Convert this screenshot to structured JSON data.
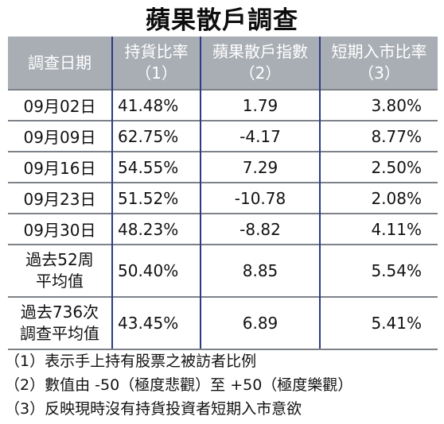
{
  "title": "蘋果散戶調查",
  "header": {
    "date": "調查日期",
    "holding_line1": "持貨比率",
    "holding_line2": "（1）",
    "index_line1": "蘋果散戶指數",
    "index_line2": "（2）",
    "entry_line1": "短期入市比率",
    "entry_line2": "（3）"
  },
  "rows": [
    {
      "date": "09月02日",
      "holding": "41.48%",
      "index": "1.79",
      "entry": "3.80%"
    },
    {
      "date": "09月09日",
      "holding": "62.75%",
      "index": "-4.17",
      "entry": "8.77%"
    },
    {
      "date": "09月16日",
      "holding": "54.55%",
      "index": "7.29",
      "entry": "2.50%"
    },
    {
      "date": "09月23日",
      "holding": "51.52%",
      "index": "-10.78",
      "entry": "2.08%"
    },
    {
      "date": "09月30日",
      "holding": "48.23%",
      "index": "-8.82",
      "entry": "4.11%"
    }
  ],
  "avg52": {
    "label_line1": "過去52周",
    "label_line2": "平均值",
    "holding": "50.40%",
    "index": "8.85",
    "entry": "5.54%"
  },
  "avg736": {
    "label_line1": "過去736次",
    "label_line2": "調查平均值",
    "holding": "43.45%",
    "index": "6.89",
    "entry": "5.41%"
  },
  "notes": [
    "（1）表示手上持有股票之被訪者比例",
    "（2）數值由 -50（極度悲觀）至 +50（極度樂觀）",
    "（3）反映現時沒有持貨投資者短期入市意欲"
  ]
}
